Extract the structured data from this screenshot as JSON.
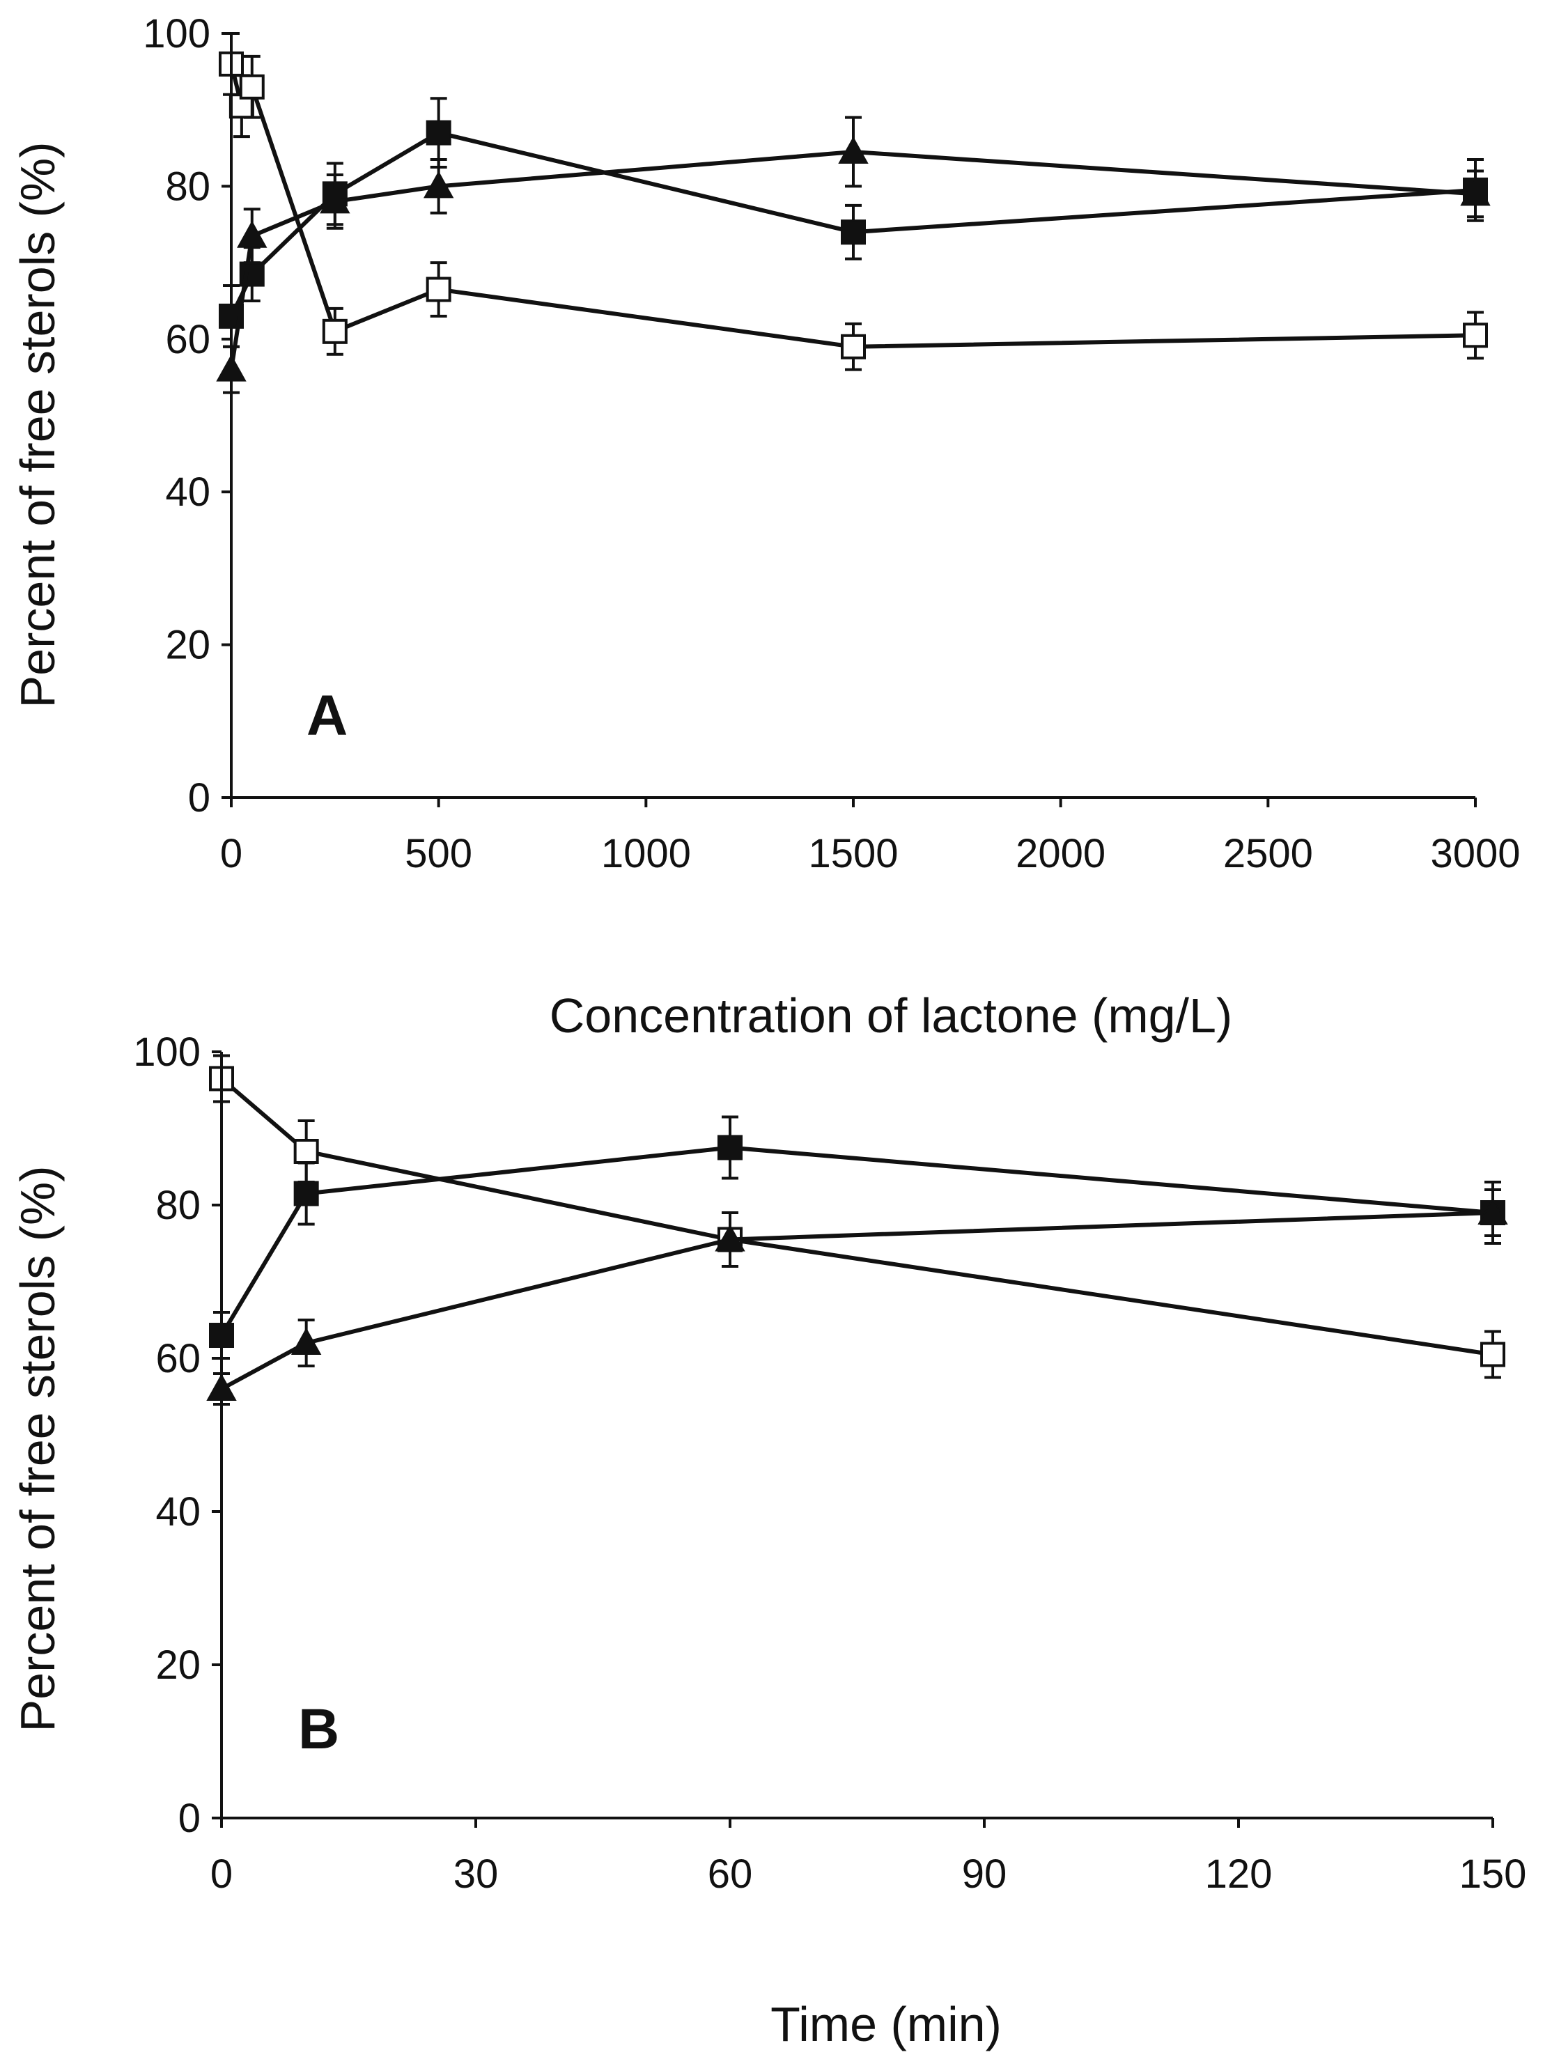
{
  "chart_data": [
    {
      "type": "line",
      "panel_label": "A",
      "xlabel": "Concentration of lactone (mg/L)",
      "ylabel": "Percent of free sterols (%)",
      "xlim": [
        0,
        3000
      ],
      "ylim": [
        0,
        100
      ],
      "xticks": [
        0,
        500,
        1000,
        1500,
        2000,
        2500,
        3000
      ],
      "yticks": [
        0,
        20,
        40,
        60,
        80,
        100
      ],
      "series": [
        {
          "name": "open-square",
          "marker": "square-open",
          "points": [
            {
              "x": 0,
              "y": 96,
              "err": 4
            },
            {
              "x": 25,
              "y": 90.5,
              "err": 4
            },
            {
              "x": 50,
              "y": 93,
              "err": 4
            },
            {
              "x": 250,
              "y": 61,
              "err": 3
            },
            {
              "x": 500,
              "y": 66.5,
              "err": 3.5
            },
            {
              "x": 1500,
              "y": 59,
              "err": 3
            },
            {
              "x": 3000,
              "y": 60.5,
              "err": 3
            }
          ]
        },
        {
          "name": "filled-square",
          "marker": "square-filled",
          "points": [
            {
              "x": 0,
              "y": 63,
              "err": 4
            },
            {
              "x": 50,
              "y": 68.5,
              "err": 3.5
            },
            {
              "x": 250,
              "y": 79,
              "err": 4
            },
            {
              "x": 500,
              "y": 87,
              "err": 4.5
            },
            {
              "x": 1500,
              "y": 74,
              "err": 3.5
            },
            {
              "x": 3000,
              "y": 79.5,
              "err": 4
            }
          ]
        },
        {
          "name": "filled-triangle",
          "marker": "triangle-filled",
          "points": [
            {
              "x": 0,
              "y": 56,
              "err": 3
            },
            {
              "x": 50,
              "y": 73.5,
              "err": 3.5
            },
            {
              "x": 250,
              "y": 78,
              "err": 3.5
            },
            {
              "x": 500,
              "y": 80,
              "err": 3.5
            },
            {
              "x": 1500,
              "y": 84.5,
              "err": 4.5
            },
            {
              "x": 3000,
              "y": 79,
              "err": 3
            }
          ]
        }
      ]
    },
    {
      "type": "line",
      "panel_label": "B",
      "xlabel": "Time (min)",
      "ylabel": "Percent of free sterols (%)",
      "xlim": [
        0,
        150
      ],
      "ylim": [
        0,
        100
      ],
      "xticks": [
        0,
        30,
        60,
        90,
        120,
        150
      ],
      "yticks": [
        0,
        20,
        40,
        60,
        80,
        100
      ],
      "series": [
        {
          "name": "open-square",
          "marker": "square-open",
          "points": [
            {
              "x": 0,
              "y": 96.5,
              "err": 3
            },
            {
              "x": 10,
              "y": 87,
              "err": 4
            },
            {
              "x": 60,
              "y": 75.5,
              "err": 3.5
            },
            {
              "x": 150,
              "y": 60.5,
              "err": 3
            }
          ]
        },
        {
          "name": "filled-square",
          "marker": "square-filled",
          "points": [
            {
              "x": 0,
              "y": 63,
              "err": 3
            },
            {
              "x": 10,
              "y": 81.5,
              "err": 4
            },
            {
              "x": 60,
              "y": 87.5,
              "err": 4
            },
            {
              "x": 150,
              "y": 79,
              "err": 4
            }
          ]
        },
        {
          "name": "filled-triangle",
          "marker": "triangle-filled",
          "points": [
            {
              "x": 0,
              "y": 56,
              "err": 2
            },
            {
              "x": 10,
              "y": 62,
              "err": 3
            },
            {
              "x": 60,
              "y": 75.5,
              "err": 3.5
            },
            {
              "x": 150,
              "y": 79,
              "err": 3
            }
          ]
        }
      ]
    }
  ]
}
